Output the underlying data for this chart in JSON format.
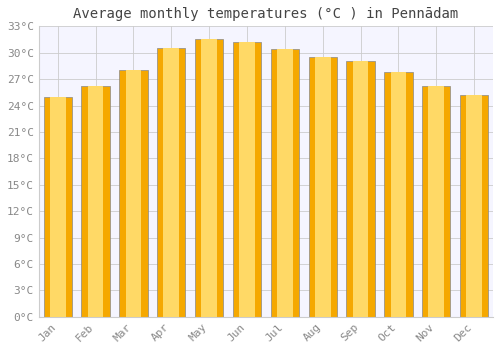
{
  "title": "Average monthly temperatures (°C ) in Pennādam",
  "months": [
    "Jan",
    "Feb",
    "Mar",
    "Apr",
    "May",
    "Jun",
    "Jul",
    "Aug",
    "Sep",
    "Oct",
    "Nov",
    "Dec"
  ],
  "temperatures": [
    25.0,
    26.2,
    28.0,
    30.5,
    31.5,
    31.2,
    30.4,
    29.5,
    29.0,
    27.8,
    26.2,
    25.2
  ],
  "bar_color_center": "#FFD966",
  "bar_color_edge": "#F5A800",
  "background_color": "#ffffff",
  "plot_bg_color": "#f5f5ff",
  "grid_color": "#cccccc",
  "text_color": "#888888",
  "title_color": "#444444",
  "ylim": [
    0,
    33
  ],
  "yticks": [
    0,
    3,
    6,
    9,
    12,
    15,
    18,
    21,
    24,
    27,
    30,
    33
  ],
  "title_fontsize": 10,
  "tick_fontsize": 8,
  "bar_width": 0.75,
  "font_family": "monospace"
}
